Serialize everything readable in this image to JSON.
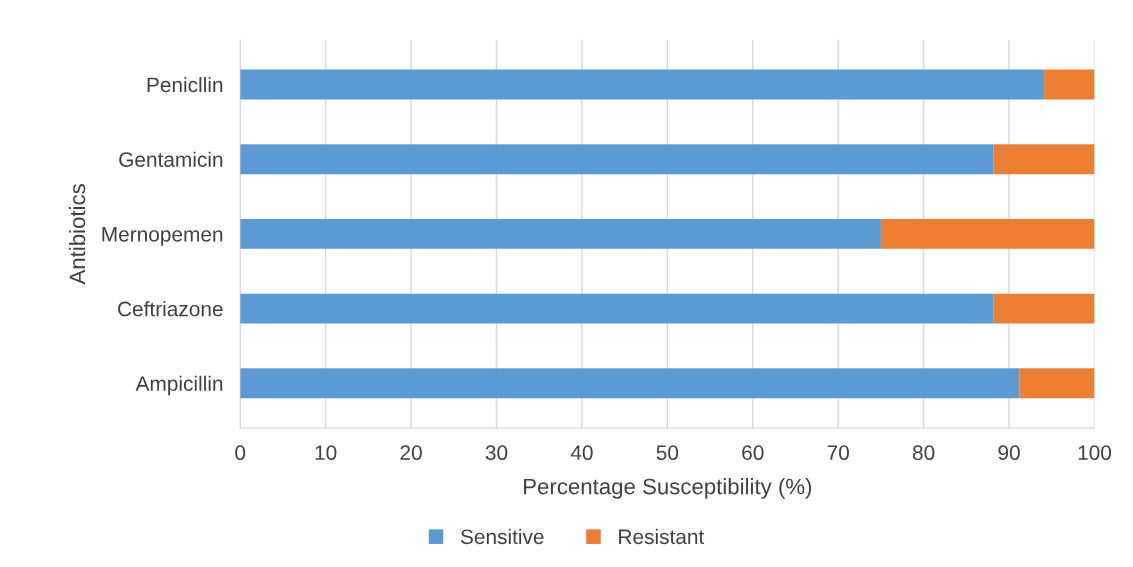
{
  "chart_data": {
    "type": "bar",
    "orientation": "horizontal",
    "stacked": true,
    "xlabel": "Percentage Susceptibility (%)",
    "ylabel": "Antibiotics",
    "categories": [
      "Penicllin",
      "Gentamicin",
      "Mernopemen",
      "Ceftriazone",
      "Ampicillin"
    ],
    "series": [
      {
        "name": "Sensitive",
        "color": "#5b9bd5",
        "values": [
          94.1,
          88.2,
          75,
          88.2,
          91.2
        ]
      },
      {
        "name": "Resistant",
        "color": "#ed7d31",
        "values": [
          5.9,
          11.8,
          25,
          11.8,
          8.8
        ]
      }
    ],
    "xlim": [
      0,
      100
    ],
    "xticks": [
      0,
      10,
      20,
      30,
      40,
      50,
      60,
      70,
      80,
      90,
      100
    ],
    "grid": "x",
    "legend": "bottom"
  }
}
